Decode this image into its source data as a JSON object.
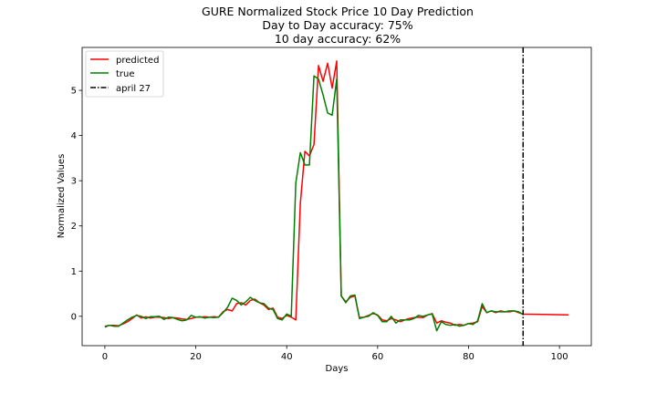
{
  "chart_data": {
    "type": "line",
    "title": [
      "GURE Normalized Stock Price 10 Day Prediction",
      "Day to Day accuracy: 75%",
      "10 day accuracy: 62%"
    ],
    "xlabel": "Days",
    "ylabel": "Normalized Values",
    "xlim": [
      -5,
      107
    ],
    "ylim": [
      -0.65,
      5.95
    ],
    "xticks": [
      0,
      20,
      40,
      60,
      80,
      100
    ],
    "yticks": [
      0,
      1,
      2,
      3,
      4,
      5
    ],
    "grid": false,
    "legend_position": "top-left",
    "series": [
      {
        "name": "predicted",
        "color": "#ff0000",
        "x": [
          0,
          1,
          2,
          3,
          4,
          5,
          6,
          7,
          8,
          9,
          10,
          11,
          12,
          13,
          14,
          15,
          16,
          17,
          18,
          19,
          20,
          21,
          22,
          23,
          24,
          25,
          26,
          27,
          28,
          29,
          30,
          31,
          32,
          33,
          34,
          35,
          36,
          37,
          38,
          39,
          40,
          41,
          42,
          43,
          44,
          45,
          46,
          47,
          48,
          49,
          50,
          51,
          52,
          53,
          54,
          55,
          56,
          57,
          58,
          59,
          60,
          61,
          62,
          63,
          64,
          65,
          66,
          67,
          68,
          69,
          70,
          71,
          72,
          73,
          74,
          75,
          76,
          77,
          78,
          79,
          80,
          81,
          82,
          83,
          84,
          85,
          86,
          87,
          88,
          89,
          90,
          91,
          92,
          102
        ],
        "y": [
          -0.22,
          -0.2,
          -0.2,
          -0.21,
          -0.17,
          -0.12,
          -0.05,
          0.03,
          -0.04,
          -0.01,
          -0.04,
          -0.02,
          -0.02,
          -0.03,
          -0.05,
          -0.03,
          -0.04,
          -0.06,
          -0.07,
          -0.05,
          -0.02,
          -0.02,
          -0.01,
          -0.02,
          -0.01,
          -0.02,
          0.1,
          0.15,
          0.12,
          0.28,
          0.3,
          0.25,
          0.35,
          0.38,
          0.3,
          0.25,
          0.15,
          0.18,
          -0.02,
          -0.05,
          0.02,
          -0.02,
          -0.08,
          2.5,
          3.65,
          3.55,
          3.8,
          5.55,
          5.2,
          5.6,
          5.05,
          5.65,
          0.45,
          0.32,
          0.42,
          0.45,
          -0.03,
          -0.02,
          0.02,
          0.06,
          0.03,
          -0.08,
          -0.1,
          -0.05,
          -0.08,
          -0.12,
          -0.08,
          -0.05,
          -0.03,
          -0.02,
          -0.03,
          0.03,
          0.06,
          -0.15,
          -0.1,
          -0.13,
          -0.15,
          -0.2,
          -0.18,
          -0.2,
          -0.16,
          -0.15,
          -0.12,
          0.22,
          0.08,
          0.12,
          0.08,
          0.12,
          0.1,
          0.1,
          0.12,
          0.08,
          0.05,
          0.03
        ]
      },
      {
        "name": "true",
        "color": "#008000",
        "x": [
          0,
          1,
          2,
          3,
          4,
          5,
          6,
          7,
          8,
          9,
          10,
          11,
          12,
          13,
          14,
          15,
          16,
          17,
          18,
          19,
          20,
          21,
          22,
          23,
          24,
          25,
          26,
          27,
          28,
          29,
          30,
          31,
          32,
          33,
          34,
          35,
          36,
          37,
          38,
          39,
          40,
          41,
          42,
          43,
          44,
          45,
          46,
          47,
          48,
          49,
          50,
          51,
          52,
          53,
          54,
          55,
          56,
          57,
          58,
          59,
          60,
          61,
          62,
          63,
          64,
          65,
          66,
          67,
          68,
          69,
          70,
          71,
          72,
          73,
          74,
          75,
          76,
          77,
          78,
          79,
          80,
          81,
          82,
          83,
          84,
          85,
          86,
          87,
          88,
          89,
          90,
          91,
          92
        ],
        "y": [
          -0.24,
          -0.2,
          -0.22,
          -0.22,
          -0.15,
          -0.08,
          -0.02,
          0.02,
          0.0,
          -0.05,
          -0.01,
          -0.01,
          0.0,
          -0.07,
          -0.02,
          -0.03,
          -0.07,
          -0.1,
          -0.08,
          0.02,
          -0.02,
          -0.01,
          -0.04,
          -0.02,
          -0.03,
          -0.02,
          0.08,
          0.2,
          0.4,
          0.35,
          0.25,
          0.32,
          0.42,
          0.35,
          0.3,
          0.28,
          0.18,
          0.15,
          -0.05,
          -0.08,
          0.05,
          0.0,
          2.95,
          3.62,
          3.35,
          3.35,
          5.32,
          5.25,
          4.9,
          4.5,
          4.45,
          5.25,
          0.45,
          0.3,
          0.45,
          0.47,
          -0.05,
          -0.02,
          0.0,
          0.08,
          0.02,
          -0.12,
          -0.12,
          0.0,
          -0.15,
          -0.08,
          -0.08,
          -0.08,
          -0.05,
          0.02,
          0.0,
          0.03,
          0.05,
          -0.32,
          -0.12,
          -0.18,
          -0.2,
          -0.18,
          -0.22,
          -0.2,
          -0.16,
          -0.18,
          -0.1,
          0.28,
          0.08,
          0.12,
          0.1,
          0.1,
          0.1,
          0.12,
          0.12,
          0.1,
          0.04
        ]
      }
    ],
    "vline": {
      "name": "april 27",
      "x": 92,
      "color": "#000000",
      "style": "dash-dot"
    }
  }
}
